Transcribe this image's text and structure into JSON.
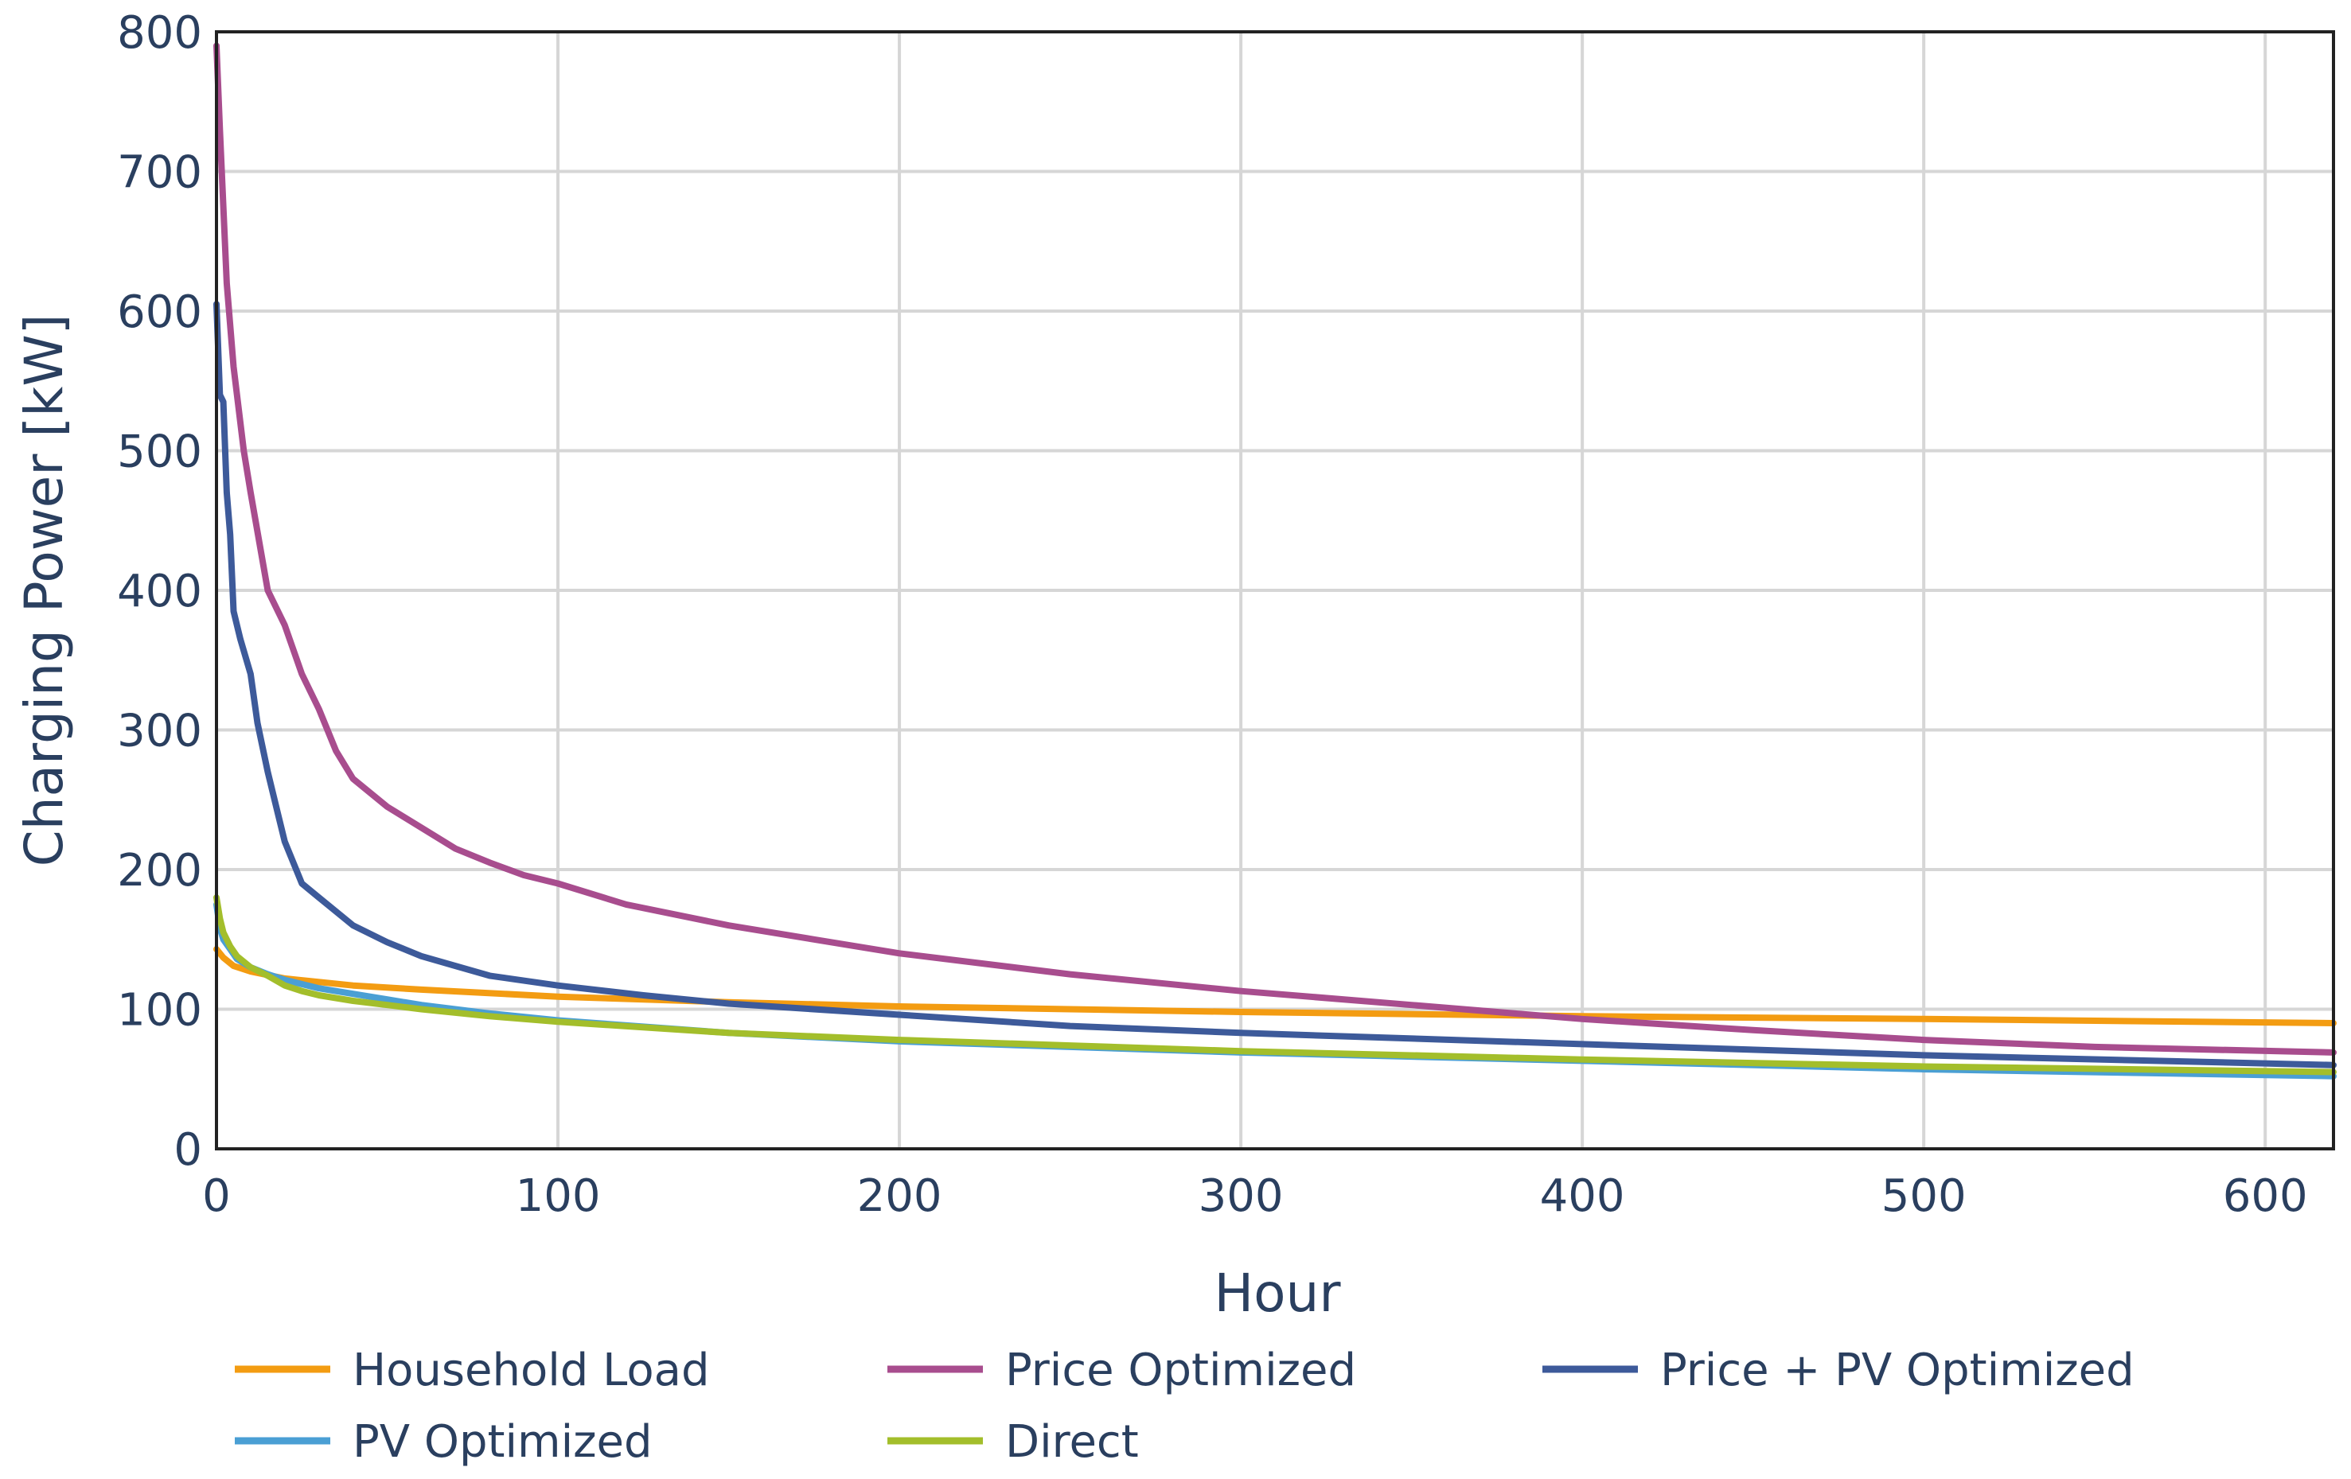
{
  "chart_data": {
    "type": "line",
    "title": "",
    "xlabel": "Hour",
    "ylabel": "Charging Power [kW]",
    "xlim": [
      0,
      620
    ],
    "ylim": [
      0,
      800
    ],
    "x_ticks": [
      0,
      100,
      200,
      300,
      400,
      500,
      600
    ],
    "y_ticks": [
      0,
      100,
      200,
      300,
      400,
      500,
      600,
      700,
      800
    ],
    "grid": true,
    "legend_position": "bottom",
    "series": [
      {
        "name": "Household Load",
        "color": "#f39c12",
        "x": [
          0,
          2,
          5,
          10,
          20,
          40,
          60,
          100,
          150,
          200,
          250,
          300,
          400,
          500,
          620
        ],
        "y": [
          143,
          137,
          131,
          127,
          122,
          117,
          114,
          109,
          105,
          102,
          100,
          98,
          95,
          93,
          90
        ]
      },
      {
        "name": "Price Optimized",
        "color": "#a84d8e",
        "x": [
          0,
          1,
          3,
          5,
          8,
          10,
          15,
          20,
          25,
          30,
          35,
          40,
          50,
          60,
          70,
          80,
          90,
          100,
          120,
          150,
          175,
          200,
          250,
          300,
          350,
          400,
          450,
          500,
          550,
          620
        ],
        "y": [
          790,
          730,
          620,
          560,
          500,
          470,
          400,
          375,
          340,
          315,
          285,
          265,
          245,
          230,
          215,
          205,
          196,
          190,
          175,
          160,
          150,
          140,
          125,
          113,
          103,
          93,
          85,
          78,
          73,
          69
        ]
      },
      {
        "name": "Price + PV Optimized",
        "color": "#3d5a9a",
        "x": [
          0,
          1,
          2,
          3,
          4,
          5,
          7,
          10,
          12,
          15,
          18,
          20,
          25,
          30,
          40,
          50,
          60,
          70,
          80,
          100,
          125,
          150,
          200,
          250,
          300,
          400,
          500,
          620
        ],
        "y": [
          605,
          540,
          535,
          470,
          440,
          385,
          365,
          340,
          305,
          270,
          240,
          220,
          190,
          180,
          160,
          148,
          138,
          131,
          124,
          117,
          110,
          104,
          96,
          88,
          83,
          75,
          67,
          60
        ]
      },
      {
        "name": "PV Optimized",
        "color": "#4a9fd4",
        "x": [
          0,
          1,
          2,
          4,
          6,
          10,
          15,
          20,
          30,
          40,
          50,
          60,
          80,
          100,
          150,
          200,
          250,
          300,
          400,
          500,
          620
        ],
        "y": [
          175,
          158,
          150,
          143,
          136,
          130,
          125,
          121,
          115,
          111,
          107,
          103,
          97,
          92,
          83,
          77,
          73,
          69,
          63,
          57,
          52
        ]
      },
      {
        "name": "Direct",
        "color": "#a3be2b",
        "x": [
          0,
          1,
          2,
          4,
          6,
          10,
          15,
          20,
          25,
          30,
          40,
          50,
          60,
          80,
          100,
          150,
          200,
          250,
          300,
          400,
          500,
          620
        ],
        "y": [
          180,
          165,
          155,
          145,
          138,
          130,
          124,
          117,
          113,
          110,
          106,
          103,
          100,
          95,
          91,
          83,
          78,
          74,
          70,
          64,
          59,
          55
        ]
      }
    ],
    "legend_order": [
      "Household Load",
      "Price Optimized",
      "Price + PV Optimized",
      "PV Optimized",
      "Direct"
    ]
  },
  "colors": {
    "grid": "#d6d6d6",
    "axis": "#222222",
    "text": "#2a3f5f"
  }
}
